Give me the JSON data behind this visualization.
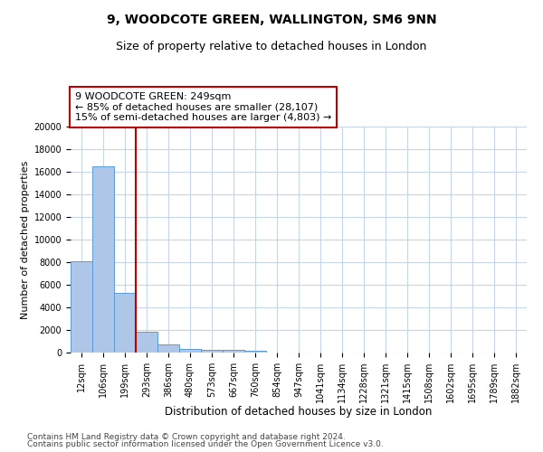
{
  "title_line1": "9, WOODCOTE GREEN, WALLINGTON, SM6 9NN",
  "title_line2": "Size of property relative to detached houses in London",
  "xlabel": "Distribution of detached houses by size in London",
  "ylabel": "Number of detached properties",
  "categories": [
    "12sqm",
    "106sqm",
    "199sqm",
    "293sqm",
    "386sqm",
    "480sqm",
    "573sqm",
    "667sqm",
    "760sqm",
    "854sqm",
    "947sqm",
    "1041sqm",
    "1134sqm",
    "1228sqm",
    "1321sqm",
    "1415sqm",
    "1508sqm",
    "1602sqm",
    "1695sqm",
    "1789sqm",
    "1882sqm"
  ],
  "values": [
    8100,
    16500,
    5300,
    1850,
    700,
    350,
    270,
    230,
    190,
    0,
    0,
    0,
    0,
    0,
    0,
    0,
    0,
    0,
    0,
    0,
    0
  ],
  "bar_color": "#aec6e8",
  "bar_edge_color": "#5b9bd5",
  "vline_color": "#c00000",
  "annotation_text": "9 WOODCOTE GREEN: 249sqm\n← 85% of detached houses are smaller (28,107)\n15% of semi-detached houses are larger (4,803) →",
  "annotation_box_color": "#c00000",
  "ylim": [
    0,
    20000
  ],
  "yticks": [
    0,
    2000,
    4000,
    6000,
    8000,
    10000,
    12000,
    14000,
    16000,
    18000,
    20000
  ],
  "footer_line1": "Contains HM Land Registry data © Crown copyright and database right 2024.",
  "footer_line2": "Contains public sector information licensed under the Open Government Licence v3.0.",
  "bg_color": "#ffffff",
  "grid_color": "#c8d4e8",
  "title1_fontsize": 10,
  "title2_fontsize": 9,
  "xlabel_fontsize": 8.5,
  "ylabel_fontsize": 8,
  "tick_fontsize": 7,
  "footer_fontsize": 6.5,
  "annotation_fontsize": 8
}
